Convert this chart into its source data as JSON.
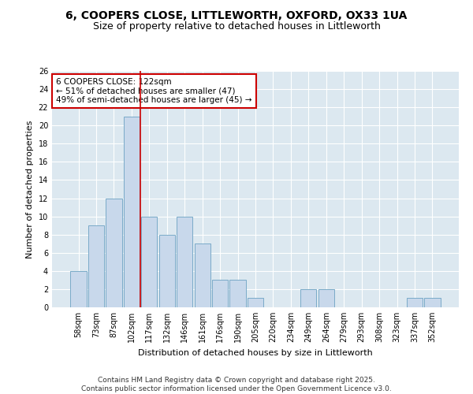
{
  "title_line1": "6, COOPERS CLOSE, LITTLEWORTH, OXFORD, OX33 1UA",
  "title_line2": "Size of property relative to detached houses in Littleworth",
  "xlabel": "Distribution of detached houses by size in Littleworth",
  "ylabel": "Number of detached properties",
  "categories": [
    "58sqm",
    "73sqm",
    "87sqm",
    "102sqm",
    "117sqm",
    "132sqm",
    "146sqm",
    "161sqm",
    "176sqm",
    "190sqm",
    "205sqm",
    "220sqm",
    "234sqm",
    "249sqm",
    "264sqm",
    "279sqm",
    "293sqm",
    "308sqm",
    "323sqm",
    "337sqm",
    "352sqm"
  ],
  "values": [
    4,
    9,
    12,
    21,
    10,
    8,
    10,
    7,
    3,
    3,
    1,
    0,
    0,
    2,
    2,
    0,
    0,
    0,
    0,
    1,
    1
  ],
  "bar_color": "#c8d8eb",
  "bar_edge_color": "#7aaac8",
  "vline_x": 3.5,
  "vline_color": "#cc0000",
  "annotation_text": "6 COOPERS CLOSE: 122sqm\n← 51% of detached houses are smaller (47)\n49% of semi-detached houses are larger (45) →",
  "annotation_box_color": "#cc0000",
  "ylim": [
    0,
    26
  ],
  "yticks": [
    0,
    2,
    4,
    6,
    8,
    10,
    12,
    14,
    16,
    18,
    20,
    22,
    24,
    26
  ],
  "bg_color": "#ffffff",
  "plot_bg_color": "#dce8f0",
  "grid_color": "#ffffff",
  "footer_line1": "Contains HM Land Registry data © Crown copyright and database right 2025.",
  "footer_line2": "Contains public sector information licensed under the Open Government Licence v3.0.",
  "title_fontsize": 10,
  "subtitle_fontsize": 9,
  "axis_label_fontsize": 8,
  "tick_fontsize": 7,
  "annotation_fontsize": 7.5,
  "footer_fontsize": 6.5
}
